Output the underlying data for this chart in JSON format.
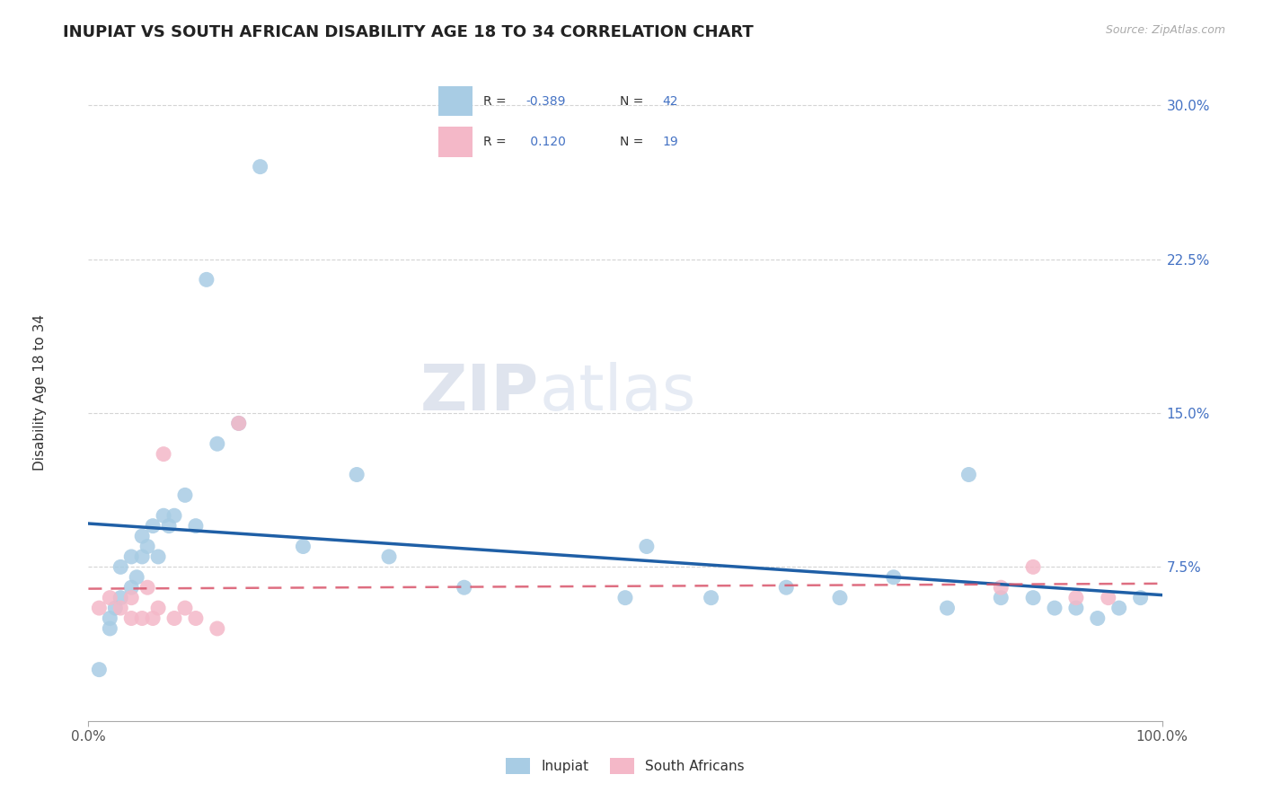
{
  "title": "INUPIAT VS SOUTH AFRICAN DISABILITY AGE 18 TO 34 CORRELATION CHART",
  "source_text": "Source: ZipAtlas.com",
  "ylabel": "Disability Age 18 to 34",
  "xlim": [
    0,
    1.0
  ],
  "ylim": [
    0,
    0.32
  ],
  "x_ticks": [
    0.0,
    1.0
  ],
  "x_tick_labels": [
    "0.0%",
    "100.0%"
  ],
  "y_ticks": [
    0.075,
    0.15,
    0.225,
    0.3
  ],
  "y_tick_labels": [
    "7.5%",
    "15.0%",
    "22.5%",
    "30.0%"
  ],
  "inupiat_color": "#a8cce4",
  "south_african_color": "#f4b8c8",
  "inupiat_line_color": "#1f5fa6",
  "south_african_line_color": "#d9556b",
  "watermark_zip": "ZIP",
  "watermark_atlas": "atlas",
  "inupiat_x": [
    0.01,
    0.02,
    0.02,
    0.025,
    0.03,
    0.03,
    0.04,
    0.04,
    0.045,
    0.05,
    0.05,
    0.055,
    0.06,
    0.065,
    0.07,
    0.075,
    0.08,
    0.09,
    0.1,
    0.11,
    0.12,
    0.14,
    0.16,
    0.2,
    0.25,
    0.28,
    0.35,
    0.5,
    0.52,
    0.58,
    0.65,
    0.7,
    0.75,
    0.8,
    0.82,
    0.85,
    0.88,
    0.9,
    0.92,
    0.94,
    0.96,
    0.98
  ],
  "inupiat_y": [
    0.025,
    0.045,
    0.05,
    0.055,
    0.06,
    0.075,
    0.065,
    0.08,
    0.07,
    0.08,
    0.09,
    0.085,
    0.095,
    0.08,
    0.1,
    0.095,
    0.1,
    0.11,
    0.095,
    0.215,
    0.135,
    0.145,
    0.27,
    0.085,
    0.12,
    0.08,
    0.065,
    0.06,
    0.085,
    0.06,
    0.065,
    0.06,
    0.07,
    0.055,
    0.12,
    0.06,
    0.06,
    0.055,
    0.055,
    0.05,
    0.055,
    0.06
  ],
  "south_african_x": [
    0.01,
    0.02,
    0.03,
    0.04,
    0.04,
    0.05,
    0.055,
    0.06,
    0.065,
    0.07,
    0.08,
    0.09,
    0.1,
    0.12,
    0.14,
    0.85,
    0.88,
    0.92,
    0.95
  ],
  "south_african_y": [
    0.055,
    0.06,
    0.055,
    0.05,
    0.06,
    0.05,
    0.065,
    0.05,
    0.055,
    0.13,
    0.05,
    0.055,
    0.05,
    0.045,
    0.145,
    0.065,
    0.075,
    0.06,
    0.06
  ],
  "background_color": "#ffffff",
  "grid_color": "#d0d0d0",
  "title_fontsize": 13,
  "axis_label_fontsize": 11,
  "tick_fontsize": 11,
  "legend_fontsize": 11
}
